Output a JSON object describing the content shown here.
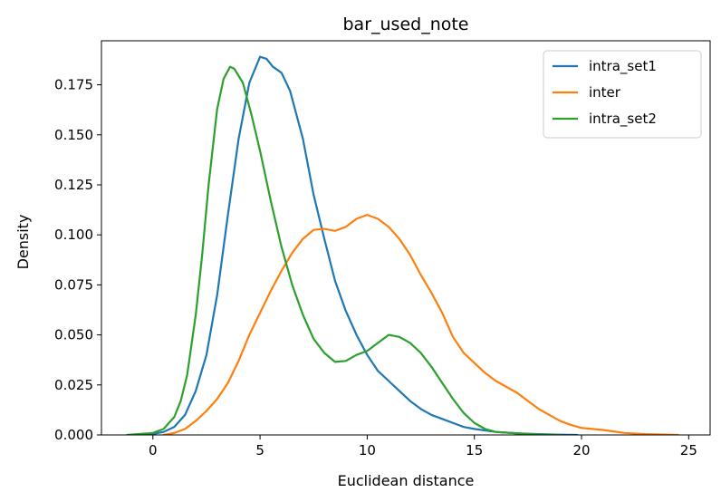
{
  "chart_data": {
    "type": "line",
    "title": "bar_used_note",
    "xlabel": "Euclidean distance",
    "ylabel": "Density",
    "xlim": [
      -2.4,
      26.0
    ],
    "ylim": [
      0.0,
      0.197
    ],
    "xticks": [
      0,
      5,
      10,
      15,
      20,
      25
    ],
    "xtick_labels": [
      "0",
      "5",
      "10",
      "15",
      "20",
      "25"
    ],
    "yticks": [
      0.0,
      0.025,
      0.05,
      0.075,
      0.1,
      0.125,
      0.15,
      0.175
    ],
    "ytick_labels": [
      "0.000",
      "0.025",
      "0.050",
      "0.075",
      "0.100",
      "0.125",
      "0.150",
      "0.175"
    ],
    "grid": false,
    "legend_position": "top-right",
    "series": [
      {
        "name": "intra_set1",
        "color": "#1f77b4",
        "points": [
          [
            -1.0,
            0.0
          ],
          [
            0.0,
            0.0005
          ],
          [
            0.5,
            0.0015
          ],
          [
            1.0,
            0.004
          ],
          [
            1.5,
            0.01
          ],
          [
            2.0,
            0.022
          ],
          [
            2.5,
            0.04
          ],
          [
            3.0,
            0.07
          ],
          [
            3.5,
            0.11
          ],
          [
            4.0,
            0.148
          ],
          [
            4.5,
            0.176
          ],
          [
            5.0,
            0.189
          ],
          [
            5.3,
            0.188
          ],
          [
            5.6,
            0.184
          ],
          [
            6.0,
            0.181
          ],
          [
            6.4,
            0.172
          ],
          [
            7.0,
            0.148
          ],
          [
            7.5,
            0.12
          ],
          [
            8.0,
            0.098
          ],
          [
            8.5,
            0.077
          ],
          [
            9.0,
            0.062
          ],
          [
            9.5,
            0.05
          ],
          [
            10.0,
            0.04
          ],
          [
            10.5,
            0.032
          ],
          [
            11.0,
            0.027
          ],
          [
            11.5,
            0.022
          ],
          [
            12.0,
            0.017
          ],
          [
            12.5,
            0.013
          ],
          [
            13.0,
            0.01
          ],
          [
            13.5,
            0.008
          ],
          [
            14.0,
            0.006
          ],
          [
            14.5,
            0.004
          ],
          [
            15.0,
            0.003
          ],
          [
            16.0,
            0.0015
          ],
          [
            17.0,
            0.0008
          ],
          [
            18.0,
            0.0004
          ],
          [
            19.0,
            0.0001
          ],
          [
            19.8,
            0.0
          ]
        ]
      },
      {
        "name": "inter",
        "color": "#ff7f0e",
        "points": [
          [
            0.5,
            0.0
          ],
          [
            1.0,
            0.001
          ],
          [
            1.5,
            0.003
          ],
          [
            2.0,
            0.007
          ],
          [
            2.5,
            0.012
          ],
          [
            3.0,
            0.018
          ],
          [
            3.5,
            0.026
          ],
          [
            4.0,
            0.037
          ],
          [
            4.5,
            0.05
          ],
          [
            5.0,
            0.061
          ],
          [
            5.5,
            0.072
          ],
          [
            6.0,
            0.082
          ],
          [
            6.5,
            0.091
          ],
          [
            7.0,
            0.098
          ],
          [
            7.5,
            0.1025
          ],
          [
            8.0,
            0.103
          ],
          [
            8.5,
            0.102
          ],
          [
            9.0,
            0.104
          ],
          [
            9.5,
            0.108
          ],
          [
            10.0,
            0.11
          ],
          [
            10.5,
            0.108
          ],
          [
            11.0,
            0.104
          ],
          [
            11.5,
            0.098
          ],
          [
            12.0,
            0.09
          ],
          [
            12.5,
            0.08
          ],
          [
            13.0,
            0.071
          ],
          [
            13.5,
            0.061
          ],
          [
            14.0,
            0.049
          ],
          [
            14.5,
            0.041
          ],
          [
            15.0,
            0.036
          ],
          [
            15.5,
            0.031
          ],
          [
            16.0,
            0.027
          ],
          [
            16.5,
            0.024
          ],
          [
            17.0,
            0.021
          ],
          [
            17.5,
            0.017
          ],
          [
            18.0,
            0.013
          ],
          [
            18.5,
            0.01
          ],
          [
            19.0,
            0.007
          ],
          [
            19.5,
            0.005
          ],
          [
            20.0,
            0.0035
          ],
          [
            21.0,
            0.0025
          ],
          [
            22.0,
            0.001
          ],
          [
            23.0,
            0.0004
          ],
          [
            24.5,
            0.0
          ]
        ]
      },
      {
        "name": "intra_set2",
        "color": "#2ca02c",
        "points": [
          [
            -1.2,
            0.0
          ],
          [
            0.0,
            0.001
          ],
          [
            0.5,
            0.003
          ],
          [
            1.0,
            0.009
          ],
          [
            1.3,
            0.017
          ],
          [
            1.6,
            0.03
          ],
          [
            2.0,
            0.06
          ],
          [
            2.3,
            0.09
          ],
          [
            2.6,
            0.125
          ],
          [
            3.0,
            0.163
          ],
          [
            3.3,
            0.178
          ],
          [
            3.6,
            0.184
          ],
          [
            3.8,
            0.183
          ],
          [
            4.2,
            0.176
          ],
          [
            4.6,
            0.16
          ],
          [
            5.0,
            0.142
          ],
          [
            5.5,
            0.117
          ],
          [
            6.0,
            0.094
          ],
          [
            6.5,
            0.075
          ],
          [
            7.0,
            0.06
          ],
          [
            7.5,
            0.048
          ],
          [
            8.0,
            0.041
          ],
          [
            8.5,
            0.0365
          ],
          [
            9.0,
            0.037
          ],
          [
            9.5,
            0.04
          ],
          [
            10.0,
            0.042
          ],
          [
            10.5,
            0.046
          ],
          [
            11.0,
            0.05
          ],
          [
            11.5,
            0.049
          ],
          [
            12.0,
            0.046
          ],
          [
            12.5,
            0.041
          ],
          [
            13.0,
            0.034
          ],
          [
            13.5,
            0.026
          ],
          [
            14.0,
            0.018
          ],
          [
            14.5,
            0.011
          ],
          [
            15.0,
            0.006
          ],
          [
            15.5,
            0.003
          ],
          [
            16.0,
            0.0015
          ],
          [
            17.0,
            0.0008
          ],
          [
            18.0,
            0.0002
          ],
          [
            19.0,
            0.0
          ]
        ]
      }
    ]
  }
}
